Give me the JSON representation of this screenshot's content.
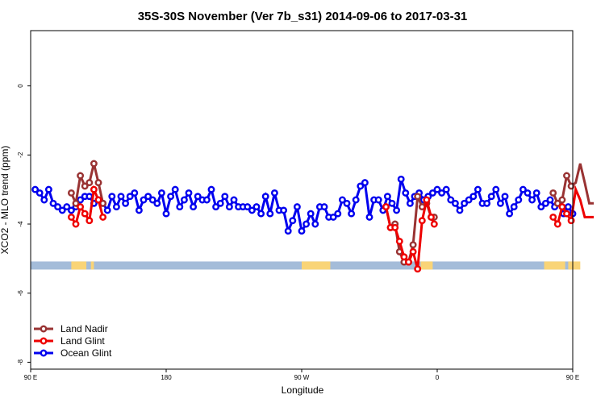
{
  "chart_data": {
    "type": "line",
    "title": "35S-30S November (Ver 7b_s31)   2014-09-06 to 2017-03-31",
    "xlabel": "Longitude",
    "ylabel": "XCO2 - MLO trend (ppm)",
    "xlim": [
      90,
      450
    ],
    "ylim": [
      -8.2,
      1.6
    ],
    "x_ticks": [
      90,
      180,
      270,
      360,
      450
    ],
    "x_tick_labels": [
      "90 E",
      "180",
      "90 W",
      "0",
      "90 E"
    ],
    "y_ticks": [
      0,
      -2,
      -4,
      -6,
      -8
    ],
    "y_tick_labels": [
      "0",
      "-2",
      "-4",
      "-6",
      "-8"
    ],
    "grid": false,
    "legend_position": "bottom-left",
    "land_band": {
      "y": -5.2,
      "ocean_color": "#a4bcd9",
      "land_color": "#f9d477",
      "land_segments": [
        [
          114,
          128
        ],
        [
          153,
          155
        ],
        [
          270,
          288
        ],
        [
          109,
          120
        ],
        [
          108,
          116
        ],
        [
          113,
          124
        ]
      ]
    },
    "series": [
      {
        "name": "Land Nadir",
        "color": "#993333",
        "x": [
          117,
          120,
          123,
          126,
          129,
          132,
          135,
          138,
          326,
          329,
          332,
          335,
          338,
          341,
          344,
          347,
          350,
          353,
          356,
          358,
          437,
          440,
          443,
          446,
          449,
          452,
          455,
          458,
          461,
          464
        ],
        "y": [
          -3.1,
          -3.4,
          -2.6,
          -2.9,
          -2.8,
          -2.25,
          -2.8,
          -3.4,
          -3.5,
          -4.1,
          -4.0,
          -4.8,
          -5.1,
          -5.1,
          -4.6,
          -3.2,
          -3.5,
          -3.4,
          -3.8,
          -3.8,
          -3.1,
          -3.4,
          -3.3,
          -2.6,
          -2.9,
          -2.8,
          -2.25,
          -2.8,
          -3.4,
          -3.4
        ]
      },
      {
        "name": "Land Glint",
        "color": "#ee0000",
        "x": [
          117,
          120,
          123,
          126,
          129,
          132,
          135,
          138,
          326,
          329,
          332,
          335,
          338,
          341,
          344,
          347,
          350,
          353,
          356,
          358,
          437,
          440,
          443,
          446,
          449,
          452,
          455,
          458,
          461,
          464
        ],
        "y": [
          -3.8,
          -4.0,
          -3.5,
          -3.7,
          -3.9,
          -3.0,
          -3.3,
          -3.8,
          -3.5,
          -4.1,
          -4.1,
          -4.5,
          -4.95,
          -5.1,
          -4.8,
          -5.3,
          -3.9,
          -3.3,
          -3.8,
          -4.0,
          -3.8,
          -4.0,
          -3.5,
          -3.7,
          -3.9,
          -3.0,
          -3.3,
          -3.8,
          -3.8,
          -3.8
        ],
        "y_note": ""
      },
      {
        "name": "Ocean Glint",
        "color": "#0000ee",
        "x": [
          93,
          96,
          99,
          102,
          105,
          108,
          111,
          114,
          117,
          120,
          123,
          126,
          129,
          132,
          135,
          138,
          141,
          144,
          147,
          150,
          153,
          156,
          159,
          162,
          165,
          168,
          171,
          174,
          177,
          180,
          183,
          186,
          189,
          192,
          195,
          198,
          201,
          204,
          207,
          210,
          213,
          216,
          219,
          222,
          225,
          228,
          231,
          234,
          237,
          240,
          243,
          246,
          249,
          252,
          255,
          258,
          261,
          264,
          267,
          270,
          273,
          276,
          279,
          282,
          285,
          288,
          291,
          294,
          297,
          300,
          303,
          306,
          309,
          312,
          315,
          318,
          321,
          324,
          327,
          330,
          333,
          336,
          339,
          342,
          345,
          348,
          351,
          354,
          357,
          360,
          363,
          366,
          369,
          372,
          375,
          378,
          381,
          384,
          387,
          390,
          393,
          396,
          399,
          402,
          405,
          408,
          411,
          414,
          417,
          420,
          423,
          426,
          429,
          432,
          435,
          438,
          441,
          444,
          447,
          450
        ],
        "y": [
          -3.0,
          -3.1,
          -3.3,
          -3.0,
          -3.4,
          -3.5,
          -3.6,
          -3.5,
          -3.6,
          -3.5,
          -3.3,
          -3.2,
          -3.2,
          -3.4,
          -3.3,
          -3.4,
          -3.6,
          -3.2,
          -3.5,
          -3.2,
          -3.4,
          -3.2,
          -3.1,
          -3.6,
          -3.3,
          -3.2,
          -3.3,
          -3.4,
          -3.1,
          -3.7,
          -3.2,
          -3.0,
          -3.5,
          -3.3,
          -3.1,
          -3.5,
          -3.2,
          -3.3,
          -3.3,
          -3.0,
          -3.5,
          -3.4,
          -3.2,
          -3.5,
          -3.3,
          -3.5,
          -3.5,
          -3.5,
          -3.6,
          -3.5,
          -3.7,
          -3.2,
          -3.7,
          -3.1,
          -3.6,
          -3.6,
          -4.2,
          -3.9,
          -3.5,
          -4.2,
          -4.0,
          -3.7,
          -4.0,
          -3.5,
          -3.5,
          -3.8,
          -3.8,
          -3.7,
          -3.3,
          -3.4,
          -3.7,
          -3.3,
          -2.9,
          -2.8,
          -3.8,
          -3.3,
          -3.3,
          -3.6,
          -3.2,
          -3.4,
          -3.6,
          -2.7,
          -3.1,
          -3.4,
          -3.2,
          -3.1,
          -3.3,
          -3.2,
          -3.1,
          -3.0,
          -3.1,
          -3.0,
          -3.3,
          -3.4,
          -3.6,
          -3.4,
          -3.3,
          -3.2,
          -3.0,
          -3.4,
          -3.4,
          -3.2,
          -3.0,
          -3.4,
          -3.2,
          -3.7,
          -3.5,
          -3.3,
          -3.0,
          -3.1,
          -3.3,
          -3.1,
          -3.5,
          -3.4,
          -3.3,
          -3.5,
          -3.4,
          -3.7,
          -3.5,
          -3.7
        ]
      }
    ]
  }
}
